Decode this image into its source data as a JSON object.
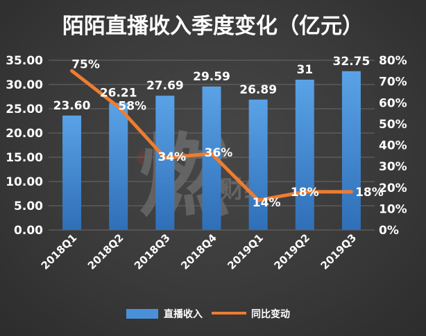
{
  "chart_data": {
    "type": "bar",
    "title": "陌陌直播收入季度变化（亿元）",
    "categories": [
      "2018Q1",
      "2018Q2",
      "2018Q3",
      "2018Q4",
      "2019Q1",
      "2019Q2",
      "2019Q3"
    ],
    "series": [
      {
        "name": "直播收入",
        "type": "bar",
        "axis": "left",
        "values": [
          23.6,
          26.21,
          27.69,
          29.59,
          26.89,
          31,
          32.75
        ],
        "labels": [
          "23.60",
          "26.21",
          "27.69",
          "29.59",
          "26.89",
          "31",
          "32.75"
        ],
        "color": "#4a90d9"
      },
      {
        "name": "同比变动",
        "type": "line",
        "axis": "right",
        "values": [
          75,
          58,
          34,
          36,
          14,
          18,
          18
        ],
        "labels": [
          "75%",
          "58%",
          "34%",
          "36%",
          "14%",
          "18%",
          "18%"
        ],
        "color": "#ed7d31"
      }
    ],
    "y_left": {
      "ylim": [
        0,
        35
      ],
      "ticks": [
        "0.00",
        "5.00",
        "10.00",
        "15.00",
        "20.00",
        "25.00",
        "30.00",
        "35.00"
      ]
    },
    "y_right": {
      "ylim": [
        0,
        80
      ],
      "ticks": [
        "0%",
        "10%",
        "20%",
        "30%",
        "40%",
        "50%",
        "60%",
        "70%",
        "80%"
      ]
    },
    "grid": true,
    "legend": "bottom"
  }
}
